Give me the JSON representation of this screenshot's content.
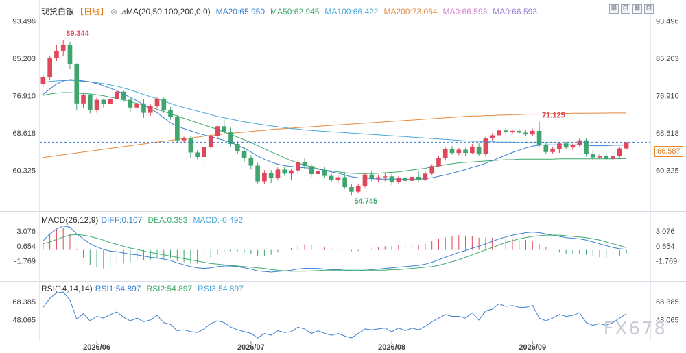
{
  "header": {
    "symbol": "现货白银",
    "period": "【日线】",
    "ma_settings": "MA(20,50,100,200,0,0)",
    "ma_values": [
      {
        "label": "MA20:65.950",
        "color": "#3a7fd0"
      },
      {
        "label": "MA50:62.945",
        "color": "#3daa6e"
      },
      {
        "label": "MA100:66.422",
        "color": "#4aa8d8"
      },
      {
        "label": "MA200:73.064",
        "color": "#e8883a"
      },
      {
        "label": "MA0:66.593",
        "color": "#d47fd0"
      },
      {
        "label": "MA0:66.593",
        "color": "#9b7fd0"
      }
    ]
  },
  "toolbar": {
    "btn1": "⊞",
    "btn2": "⊟",
    "btn3": "⊠",
    "btn4": "⊡"
  },
  "current_price": "66.587",
  "current_price_color": "#e07a1a",
  "high_label": "89.344",
  "low_label": "54.745",
  "recent_high_label": "71.125",
  "macd": {
    "title": "MACD(26,12,9)",
    "diff": "DIFF:0.107",
    "dea": "DEA:0.353",
    "macd": "MACD:-0.492"
  },
  "rsi": {
    "title": "RSI(14,14,14)",
    "rsi1": "RSI1:54.897",
    "rsi2": "RSI2:54.897",
    "rsi3": "RSI3:54.897"
  },
  "watermark": "FX678",
  "chart_data": [
    {
      "type": "candlestick",
      "title": "现货白银【日线】",
      "y_ticks": [
        93.496,
        85.203,
        76.91,
        68.618,
        60.325
      ],
      "ylim": [
        52.5,
        94.8
      ],
      "x_ticks": [
        "2026/06",
        "2026/07",
        "2026/08",
        "2026/09"
      ],
      "colors": {
        "up": "#e0475a",
        "down": "#3ea56e"
      },
      "ohlc": [
        [
          79.5,
          81.6,
          78.9,
          81.0
        ],
        [
          81.0,
          85.8,
          80.5,
          85.2
        ],
        [
          85.2,
          88.2,
          84.6,
          86.9
        ],
        [
          86.9,
          89.344,
          85.8,
          88.2
        ],
        [
          88.2,
          88.9,
          82.8,
          83.9
        ],
        [
          83.9,
          84.1,
          73.8,
          75.2
        ],
        [
          75.2,
          77.5,
          74.1,
          77.1
        ],
        [
          77.1,
          77.4,
          73.0,
          73.8
        ],
        [
          73.8,
          76.5,
          73.1,
          76.0
        ],
        [
          76.0,
          76.3,
          74.3,
          75.1
        ],
        [
          75.1,
          76.7,
          74.8,
          76.2
        ],
        [
          76.2,
          78.6,
          75.9,
          77.8
        ],
        [
          77.8,
          78.0,
          75.5,
          76.0
        ],
        [
          76.0,
          76.4,
          73.2,
          74.3
        ],
        [
          74.3,
          75.8,
          73.9,
          75.2
        ],
        [
          75.2,
          76.1,
          72.0,
          73.1
        ],
        [
          73.1,
          75.0,
          72.4,
          74.6
        ],
        [
          74.6,
          76.6,
          74.1,
          76.2
        ],
        [
          76.2,
          76.5,
          73.1,
          73.7
        ],
        [
          73.7,
          74.4,
          71.6,
          72.2
        ],
        [
          72.2,
          72.6,
          66.4,
          67.0
        ],
        [
          67.0,
          67.8,
          66.5,
          67.4
        ],
        [
          67.4,
          67.9,
          63.0,
          64.3
        ],
        [
          64.3,
          64.8,
          62.8,
          63.3
        ],
        [
          63.3,
          66.2,
          61.7,
          65.5
        ],
        [
          65.5,
          68.5,
          65.0,
          68.0
        ],
        [
          68.0,
          70.4,
          67.5,
          70.1
        ],
        [
          70.1,
          71.6,
          68.4,
          68.9
        ],
        [
          68.9,
          69.8,
          65.6,
          66.2
        ],
        [
          66.2,
          66.8,
          64.0,
          64.6
        ],
        [
          64.6,
          65.4,
          62.2,
          63.0
        ],
        [
          63.0,
          63.7,
          60.5,
          61.4
        ],
        [
          61.4,
          62.0,
          57.4,
          57.9
        ],
        [
          57.9,
          60.4,
          57.2,
          59.8
        ],
        [
          59.8,
          60.4,
          57.5,
          58.7
        ],
        [
          58.7,
          61.0,
          58.1,
          60.5
        ],
        [
          60.5,
          61.2,
          59.1,
          59.6
        ],
        [
          59.6,
          60.7,
          58.2,
          60.3
        ],
        [
          60.3,
          62.8,
          59.5,
          62.1
        ],
        [
          62.1,
          63.1,
          60.6,
          61.3
        ],
        [
          61.3,
          61.8,
          58.9,
          59.5
        ],
        [
          59.5,
          60.6,
          58.3,
          60.2
        ],
        [
          60.2,
          61.0,
          58.6,
          59.1
        ],
        [
          59.1,
          59.6,
          57.7,
          58.2
        ],
        [
          58.2,
          59.3,
          57.6,
          58.8
        ],
        [
          58.8,
          59.9,
          56.2,
          56.6
        ],
        [
          56.6,
          57.2,
          54.745,
          55.6
        ],
        [
          55.6,
          57.4,
          55.2,
          56.9
        ],
        [
          56.9,
          59.8,
          56.5,
          59.4
        ],
        [
          59.4,
          60.3,
          57.9,
          58.5
        ],
        [
          58.5,
          59.2,
          57.8,
          58.8
        ],
        [
          58.8,
          59.7,
          57.9,
          59.0
        ],
        [
          59.0,
          59.5,
          57.1,
          57.8
        ],
        [
          57.8,
          59.0,
          57.4,
          58.6
        ],
        [
          58.6,
          59.2,
          57.6,
          58.0
        ],
        [
          58.0,
          59.1,
          57.7,
          58.9
        ],
        [
          58.9,
          60.2,
          57.9,
          58.2
        ],
        [
          58.2,
          60.2,
          58.0,
          59.6
        ],
        [
          59.6,
          61.7,
          59.2,
          61.3
        ],
        [
          61.3,
          63.6,
          61.0,
          63.1
        ],
        [
          63.1,
          65.4,
          62.5,
          65.0
        ],
        [
          65.0,
          65.7,
          63.8,
          64.2
        ],
        [
          64.2,
          65.3,
          63.7,
          64.9
        ],
        [
          64.9,
          65.3,
          63.6,
          64.2
        ],
        [
          64.2,
          66.2,
          63.9,
          65.6
        ],
        [
          65.6,
          66.4,
          63.5,
          63.9
        ],
        [
          63.9,
          67.8,
          63.4,
          67.4
        ],
        [
          67.4,
          68.6,
          66.9,
          68.1
        ],
        [
          68.1,
          69.6,
          67.7,
          69.2
        ],
        [
          69.2,
          69.8,
          68.4,
          68.9
        ],
        [
          68.9,
          69.4,
          68.3,
          69.1
        ],
        [
          69.1,
          69.6,
          68.5,
          68.7
        ],
        [
          68.7,
          69.2,
          67.9,
          68.3
        ],
        [
          68.3,
          69.6,
          68.0,
          69.1
        ],
        [
          69.1,
          71.125,
          65.6,
          65.9
        ],
        [
          65.9,
          66.6,
          64.0,
          64.4
        ],
        [
          64.4,
          65.5,
          64.0,
          65.1
        ],
        [
          65.1,
          66.6,
          64.2,
          66.3
        ],
        [
          66.3,
          66.7,
          65.1,
          65.4
        ],
        [
          65.4,
          66.3,
          64.8,
          66.0
        ],
        [
          66.0,
          67.4,
          65.6,
          67.0
        ],
        [
          67.0,
          67.4,
          63.4,
          63.9
        ],
        [
          63.9,
          64.9,
          62.7,
          63.2
        ],
        [
          63.2,
          63.9,
          62.9,
          63.5
        ],
        [
          63.5,
          64.1,
          62.5,
          62.9
        ],
        [
          62.9,
          63.8,
          62.6,
          63.6
        ],
        [
          63.6,
          65.6,
          63.2,
          65.2
        ],
        [
          65.2,
          66.7,
          64.9,
          66.587
        ]
      ],
      "ma20": [
        77.2,
        78.4,
        79.5,
        80.2,
        80.5,
        80.4,
        80.2,
        80.0,
        79.6,
        79.1,
        78.6,
        78.0,
        77.3,
        76.5,
        75.8,
        74.9,
        74.0,
        73.1,
        72.0,
        70.9,
        70.1,
        69.6,
        69.1,
        68.6,
        68.2,
        67.8,
        67.4,
        67.0,
        66.5,
        65.9,
        65.2,
        64.4,
        63.5,
        62.8,
        62.2,
        61.7,
        61.4,
        61.2,
        61.0,
        60.9,
        60.8,
        60.6,
        60.3,
        60.0,
        59.7,
        59.3,
        58.9,
        58.7,
        58.6,
        58.5,
        58.4,
        58.4,
        58.4,
        58.4,
        58.4,
        58.4,
        58.4,
        58.5,
        58.7,
        59.0,
        59.3,
        59.7,
        60.1,
        60.5,
        61.0,
        61.4,
        61.9,
        62.5,
        63.1,
        63.7,
        64.3,
        64.8,
        65.3,
        65.7,
        65.9,
        66.0,
        66.0,
        66.0,
        66.0,
        66.0,
        66.0,
        65.9,
        65.8,
        65.8,
        65.8,
        65.9,
        65.9,
        65.95
      ],
      "ma50": [
        77.0,
        77.3,
        77.5,
        77.6,
        77.6,
        77.5,
        77.4,
        77.3,
        77.1,
        76.9,
        76.6,
        76.3,
        76.0,
        75.6,
        75.2,
        74.8,
        74.4,
        73.9,
        73.4,
        72.9,
        72.4,
        71.9,
        71.4,
        70.9,
        70.4,
        69.9,
        69.4,
        68.8,
        68.3,
        67.7,
        67.1,
        66.5,
        65.8,
        65.1,
        64.4,
        63.8,
        63.1,
        62.5,
        62.0,
        61.5,
        61.1,
        60.7,
        60.4,
        60.2,
        60.0,
        59.8,
        59.7,
        59.6,
        59.6,
        59.6,
        59.7,
        59.8,
        59.9,
        60.0,
        60.2,
        60.4,
        60.6,
        60.8,
        61.1,
        61.3,
        61.6,
        61.8,
        62.0,
        62.1,
        62.2,
        62.3,
        62.4,
        62.5,
        62.6,
        62.7,
        62.7,
        62.8,
        62.8,
        62.8,
        62.8,
        62.8,
        62.8,
        62.9,
        62.9,
        62.9,
        62.9,
        62.9,
        62.9,
        62.9,
        62.9,
        62.9,
        62.93,
        62.945
      ],
      "ma100": [
        79.8,
        80.1,
        80.2,
        80.3,
        80.3,
        80.2,
        80.1,
        80.0,
        79.8,
        79.6,
        79.3,
        79.0,
        78.6,
        78.2,
        77.7,
        77.2,
        76.7,
        76.2,
        75.7,
        75.2,
        74.7,
        74.3,
        73.9,
        73.5,
        73.1,
        72.7,
        72.3,
        72.0,
        71.7,
        71.4,
        71.1,
        70.9,
        70.6,
        70.4,
        70.2,
        70.0,
        69.8,
        69.6,
        69.5,
        69.3,
        69.2,
        69.1,
        69.0,
        68.9,
        68.8,
        68.7,
        68.6,
        68.5,
        68.4,
        68.3,
        68.2,
        68.1,
        68.0,
        67.9,
        67.8,
        67.7,
        67.6,
        67.5,
        67.4,
        67.3,
        67.2,
        67.1,
        67.0,
        66.9,
        66.8,
        66.8,
        66.7,
        66.7,
        66.6,
        66.6,
        66.6,
        66.5,
        66.5,
        66.5,
        66.5,
        66.5,
        66.5,
        66.45,
        66.45,
        66.45,
        66.45,
        66.44,
        66.44,
        66.43,
        66.43,
        66.42,
        66.42,
        66.422
      ],
      "ma200": [
        63.2,
        63.4,
        63.6,
        63.8,
        64.0,
        64.2,
        64.4,
        64.6,
        64.8,
        65.0,
        65.2,
        65.4,
        65.6,
        65.8,
        66.0,
        66.2,
        66.4,
        66.6,
        66.8,
        67.0,
        67.2,
        67.4,
        67.5,
        67.7,
        67.9,
        68.1,
        68.2,
        68.4,
        68.5,
        68.7,
        68.8,
        69.0,
        69.1,
        69.2,
        69.4,
        69.5,
        69.6,
        69.7,
        69.8,
        69.9,
        70.0,
        70.1,
        70.2,
        70.3,
        70.4,
        70.5,
        70.6,
        70.7,
        70.8,
        70.9,
        71.0,
        71.1,
        71.2,
        71.3,
        71.4,
        71.5,
        71.6,
        71.7,
        71.8,
        71.9,
        72.0,
        72.1,
        72.2,
        72.3,
        72.4,
        72.4,
        72.5,
        72.5,
        72.6,
        72.6,
        72.7,
        72.7,
        72.8,
        72.8,
        72.8,
        72.9,
        72.9,
        72.9,
        72.95,
        73.0,
        73.0,
        73.0,
        73.02,
        73.03,
        73.04,
        73.05,
        73.06,
        73.064
      ]
    },
    {
      "type": "macd",
      "title": "MACD(26,12,9)",
      "y_ticks": [
        3.076,
        0.654,
        -1.769
      ],
      "ylim": [
        -4.6,
        4.3
      ],
      "diff": [
        1.5,
        2.6,
        3.4,
        3.9,
        3.7,
        2.6,
        1.8,
        1.0,
        0.5,
        0.1,
        -0.2,
        -0.3,
        -0.5,
        -0.7,
        -0.8,
        -1.0,
        -1.2,
        -1.3,
        -1.5,
        -1.7,
        -2.1,
        -2.4,
        -2.7,
        -2.9,
        -3.0,
        -2.9,
        -2.7,
        -2.6,
        -2.6,
        -2.7,
        -2.9,
        -3.1,
        -3.4,
        -3.5,
        -3.6,
        -3.5,
        -3.4,
        -3.3,
        -3.1,
        -3.0,
        -3.0,
        -3.0,
        -3.1,
        -3.2,
        -3.2,
        -3.3,
        -3.4,
        -3.4,
        -3.3,
        -3.2,
        -3.1,
        -3.0,
        -2.9,
        -2.8,
        -2.7,
        -2.6,
        -2.5,
        -2.3,
        -2.0,
        -1.6,
        -1.2,
        -0.8,
        -0.4,
        -0.1,
        0.3,
        0.6,
        1.0,
        1.4,
        1.8,
        2.1,
        2.4,
        2.6,
        2.8,
        2.9,
        2.8,
        2.6,
        2.4,
        2.2,
        2.0,
        1.9,
        1.8,
        1.6,
        1.3,
        1.0,
        0.7,
        0.4,
        0.2,
        0.107
      ],
      "dea": [
        1.0,
        1.3,
        1.7,
        2.1,
        2.4,
        2.5,
        2.4,
        2.2,
        1.9,
        1.6,
        1.2,
        0.9,
        0.6,
        0.3,
        0.1,
        -0.2,
        -0.4,
        -0.6,
        -0.8,
        -1.0,
        -1.2,
        -1.4,
        -1.6,
        -1.8,
        -2.0,
        -2.2,
        -2.3,
        -2.4,
        -2.5,
        -2.6,
        -2.7,
        -2.8,
        -2.9,
        -3.0,
        -3.2,
        -3.3,
        -3.4,
        -3.45,
        -3.45,
        -3.45,
        -3.4,
        -3.35,
        -3.3,
        -3.3,
        -3.3,
        -3.3,
        -3.3,
        -3.3,
        -3.3,
        -3.3,
        -3.3,
        -3.3,
        -3.2,
        -3.2,
        -3.1,
        -3.0,
        -2.9,
        -2.8,
        -2.7,
        -2.5,
        -2.2,
        -1.9,
        -1.6,
        -1.2,
        -0.8,
        -0.4,
        0.0,
        0.4,
        0.8,
        1.2,
        1.5,
        1.8,
        2.0,
        2.2,
        2.3,
        2.4,
        2.4,
        2.4,
        2.3,
        2.2,
        2.1,
        2.0,
        1.8,
        1.6,
        1.3,
        1.0,
        0.7,
        0.353
      ],
      "macd": [
        1.0,
        2.6,
        3.4,
        3.6,
        2.6,
        0.2,
        -1.2,
        -2.4,
        -2.8,
        -3.0,
        -2.8,
        -2.4,
        -2.2,
        -2.0,
        -1.8,
        -1.6,
        -1.6,
        -1.4,
        -1.4,
        -1.4,
        -1.8,
        -2.0,
        -2.2,
        -2.2,
        -2.0,
        -1.4,
        -0.8,
        -0.4,
        -0.2,
        -0.2,
        -0.4,
        -0.6,
        -1.0,
        -1.0,
        -0.8,
        -0.4,
        0.0,
        0.3,
        0.7,
        0.9,
        0.8,
        0.7,
        0.4,
        0.2,
        0.2,
        0.0,
        -0.2,
        -0.2,
        0.0,
        0.2,
        0.4,
        0.6,
        0.6,
        0.8,
        0.8,
        0.8,
        0.8,
        1.0,
        1.4,
        1.8,
        2.0,
        2.2,
        2.4,
        2.2,
        2.2,
        2.0,
        2.0,
        2.0,
        2.0,
        1.8,
        1.8,
        1.6,
        1.6,
        1.4,
        1.0,
        0.4,
        0.0,
        -0.4,
        -0.6,
        -0.6,
        -0.6,
        -0.8,
        -1.0,
        -1.2,
        -1.2,
        -1.2,
        -1.0,
        -0.492
      ]
    },
    {
      "type": "rsi",
      "title": "RSI(14,14,14)",
      "y_ticks": [
        68.385,
        48.065
      ],
      "ylim": [
        25,
        79
      ],
      "rsi": [
        62,
        72,
        78,
        79,
        70,
        49,
        55,
        47,
        52,
        50,
        54,
        57,
        51,
        47,
        50,
        46,
        48,
        53,
        45,
        43,
        36,
        37,
        35,
        34,
        38,
        44,
        47,
        45,
        40,
        37,
        35,
        33,
        28,
        33,
        31,
        36,
        34,
        35,
        40,
        38,
        33,
        36,
        33,
        31,
        33,
        30,
        28,
        33,
        38,
        37,
        38,
        39,
        35,
        39,
        36,
        39,
        37,
        41,
        46,
        50,
        54,
        52,
        52,
        50,
        56,
        48,
        58,
        60,
        66,
        63,
        64,
        62,
        62,
        64,
        50,
        47,
        50,
        54,
        52,
        53,
        56,
        45,
        42,
        44,
        42,
        45,
        50,
        54.897
      ]
    }
  ]
}
